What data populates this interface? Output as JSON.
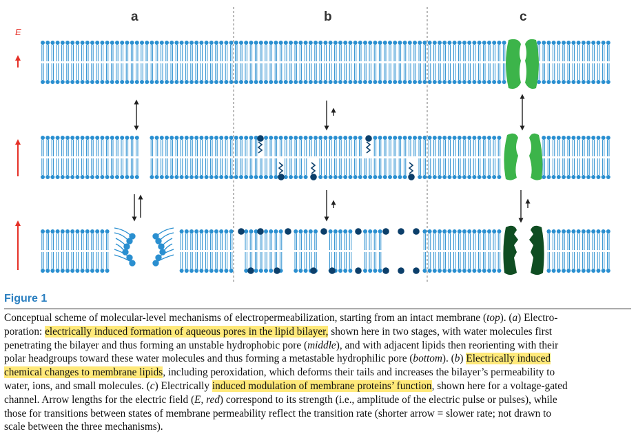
{
  "figure": {
    "title": "Figure 1",
    "panels": [
      "a",
      "b",
      "c"
    ],
    "field_label": "E",
    "colors": {
      "lipid": "#2a8fd0",
      "red_arrow": "#e53027",
      "protein_light": "#3cb44a",
      "protein_dark": "#0f4d22",
      "oxidized": "#0c3f6a",
      "highlight": "#ffe97a"
    }
  },
  "caption": {
    "lines": [
      [
        {
          "t": "Conceptual scheme of molecular-level mechanisms of electropermeabilization, starting from an intact membrane ("
        },
        {
          "t": "top",
          "i": true
        },
        {
          "t": "). ("
        },
        {
          "t": "a",
          "i": true
        },
        {
          "t": ") Electro-"
        }
      ],
      [
        {
          "t": "poration: "
        },
        {
          "t": "electrically induced formation of aqueous pores in the lipid bilayer,",
          "h": true
        },
        {
          "t": " shown here in two stages, with water molecules first"
        }
      ],
      [
        {
          "t": "penetrating the bilayer and thus forming an unstable hydrophobic pore ("
        },
        {
          "t": "middle",
          "i": true
        },
        {
          "t": "), and with adjacent lipids then reorienting with their"
        }
      ],
      [
        {
          "t": "polar headgroups toward these water molecules and thus forming a metastable hydrophilic pore ("
        },
        {
          "t": "bottom",
          "i": true
        },
        {
          "t": "). ("
        },
        {
          "t": "b",
          "i": true
        },
        {
          "t": ") "
        },
        {
          "t": "Electrically induced",
          "h": true
        }
      ],
      [
        {
          "t": "chemical changes to membrane lipids",
          "h": true
        },
        {
          "t": ", including peroxidation, which deforms their tails and increases the bilayer’s permeability to"
        }
      ],
      [
        {
          "t": "water, ions, and small molecules. ("
        },
        {
          "t": "c",
          "i": true
        },
        {
          "t": ") Electrically "
        },
        {
          "t": "induced modulation of membrane proteins’ function",
          "h": true
        },
        {
          "t": ", shown here for a voltage-gated"
        }
      ],
      [
        {
          "t": "channel. Arrow lengths for the electric field ("
        },
        {
          "t": "E, red",
          "i": true
        },
        {
          "t": ") correspond to its strength (i.e., amplitude of the electric pulse or pulses), while"
        }
      ],
      [
        {
          "t": "those for transitions between states of membrane permeability reflect the transition rate (shorter arrow = slower rate; not drawn to"
        }
      ],
      [
        {
          "t": "scale between the three mechanisms)."
        }
      ]
    ]
  }
}
